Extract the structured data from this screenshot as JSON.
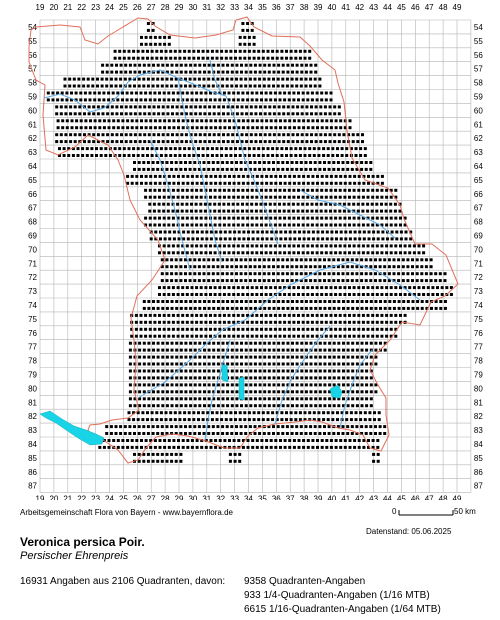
{
  "map": {
    "col_labels": [
      "19",
      "20",
      "21",
      "22",
      "23",
      "24",
      "25",
      "26",
      "27",
      "28",
      "29",
      "30",
      "31",
      "32",
      "33",
      "34",
      "35",
      "36",
      "37",
      "38",
      "39",
      "40",
      "41",
      "42",
      "43",
      "44",
      "45",
      "46",
      "47",
      "48",
      "49"
    ],
    "row_labels": [
      "54",
      "55",
      "56",
      "57",
      "58",
      "59",
      "60",
      "61",
      "62",
      "63",
      "64",
      "65",
      "66",
      "67",
      "68",
      "69",
      "70",
      "71",
      "72",
      "73",
      "74",
      "75",
      "76",
      "77",
      "78",
      "79",
      "80",
      "81",
      "82",
      "83",
      "84",
      "85",
      "86",
      "87"
    ],
    "colors": {
      "grid": "#b4b4b4",
      "border": "#e0705a",
      "river": "#5aa9e6",
      "lake": "#19d3e6",
      "dot": "#000000"
    },
    "occupied_rows": [
      {
        "row": "54",
        "from": 26.8,
        "to": 27.2
      },
      {
        "row": "54",
        "from": 33.6,
        "to": 34.4
      },
      {
        "row": "55",
        "from": 26.3,
        "to": 28.5
      },
      {
        "row": "55",
        "from": 33.4,
        "to": 34.6
      },
      {
        "row": "56",
        "from": 24.4,
        "to": 38.7
      },
      {
        "row": "57",
        "from": 23.5,
        "to": 39.0
      },
      {
        "row": "58",
        "from": 20.8,
        "to": 39.3
      },
      {
        "row": "59",
        "from": 19.6,
        "to": 40.2
      },
      {
        "row": "60",
        "from": 20.2,
        "to": 40.8
      },
      {
        "row": "61",
        "from": 20.3,
        "to": 41.6
      },
      {
        "row": "62",
        "from": 20.2,
        "to": 42.3
      },
      {
        "row": "63",
        "from": 20.4,
        "to": 42.7
      },
      {
        "row": "64",
        "from": 25.8,
        "to": 43.1
      },
      {
        "row": "65",
        "from": 25.3,
        "to": 43.7
      },
      {
        "row": "66",
        "from": 26.6,
        "to": 44.6
      },
      {
        "row": "67",
        "from": 26.9,
        "to": 44.9
      },
      {
        "row": "68",
        "from": 26.6,
        "to": 45.3
      },
      {
        "row": "69",
        "from": 27.0,
        "to": 45.7
      },
      {
        "row": "70",
        "from": 27.6,
        "to": 46.8
      },
      {
        "row": "71",
        "from": 27.8,
        "to": 47.3
      },
      {
        "row": "72",
        "from": 27.8,
        "to": 48.3
      },
      {
        "row": "73",
        "from": 27.6,
        "to": 48.6
      },
      {
        "row": "74",
        "from": 26.5,
        "to": 48.2
      },
      {
        "row": "75",
        "from": 25.6,
        "to": 45.5
      },
      {
        "row": "76",
        "from": 25.6,
        "to": 44.7
      },
      {
        "row": "77",
        "from": 25.5,
        "to": 43.9
      },
      {
        "row": "78",
        "from": 25.5,
        "to": 43.2
      },
      {
        "row": "79",
        "from": 25.5,
        "to": 43.0
      },
      {
        "row": "80",
        "from": 25.5,
        "to": 43.3
      },
      {
        "row": "81",
        "from": 25.5,
        "to": 43.1
      },
      {
        "row": "82",
        "from": 25.4,
        "to": 43.6
      },
      {
        "row": "83",
        "from": 23.8,
        "to": 43.9
      },
      {
        "row": "84",
        "from": 23.3,
        "to": 43.6
      },
      {
        "row": "85",
        "from": 25.8,
        "to": 29.4
      },
      {
        "row": "85",
        "from": 32.7,
        "to": 33.6
      },
      {
        "row": "85",
        "from": 43.0,
        "to": 43.4
      }
    ]
  },
  "credit": "Arbeitsgemeinschaft Flora von Bayern - www.bayernflora.de",
  "scale": {
    "zero": "0",
    "end": "50 km"
  },
  "date": "Datenstand: 05.06.2025",
  "species": "Veronica persica Poir.",
  "common_name": "Persischer Ehrenpreis",
  "summary": "16931 Angaben aus 2106 Quadranten, davon:",
  "stats": [
    "9358 Quadranten-Angaben",
    "933 1/4-Quadranten-Angaben (1/16 MTB)",
    "6615 1/16-Quadranten-Angaben (1/64 MTB)"
  ]
}
